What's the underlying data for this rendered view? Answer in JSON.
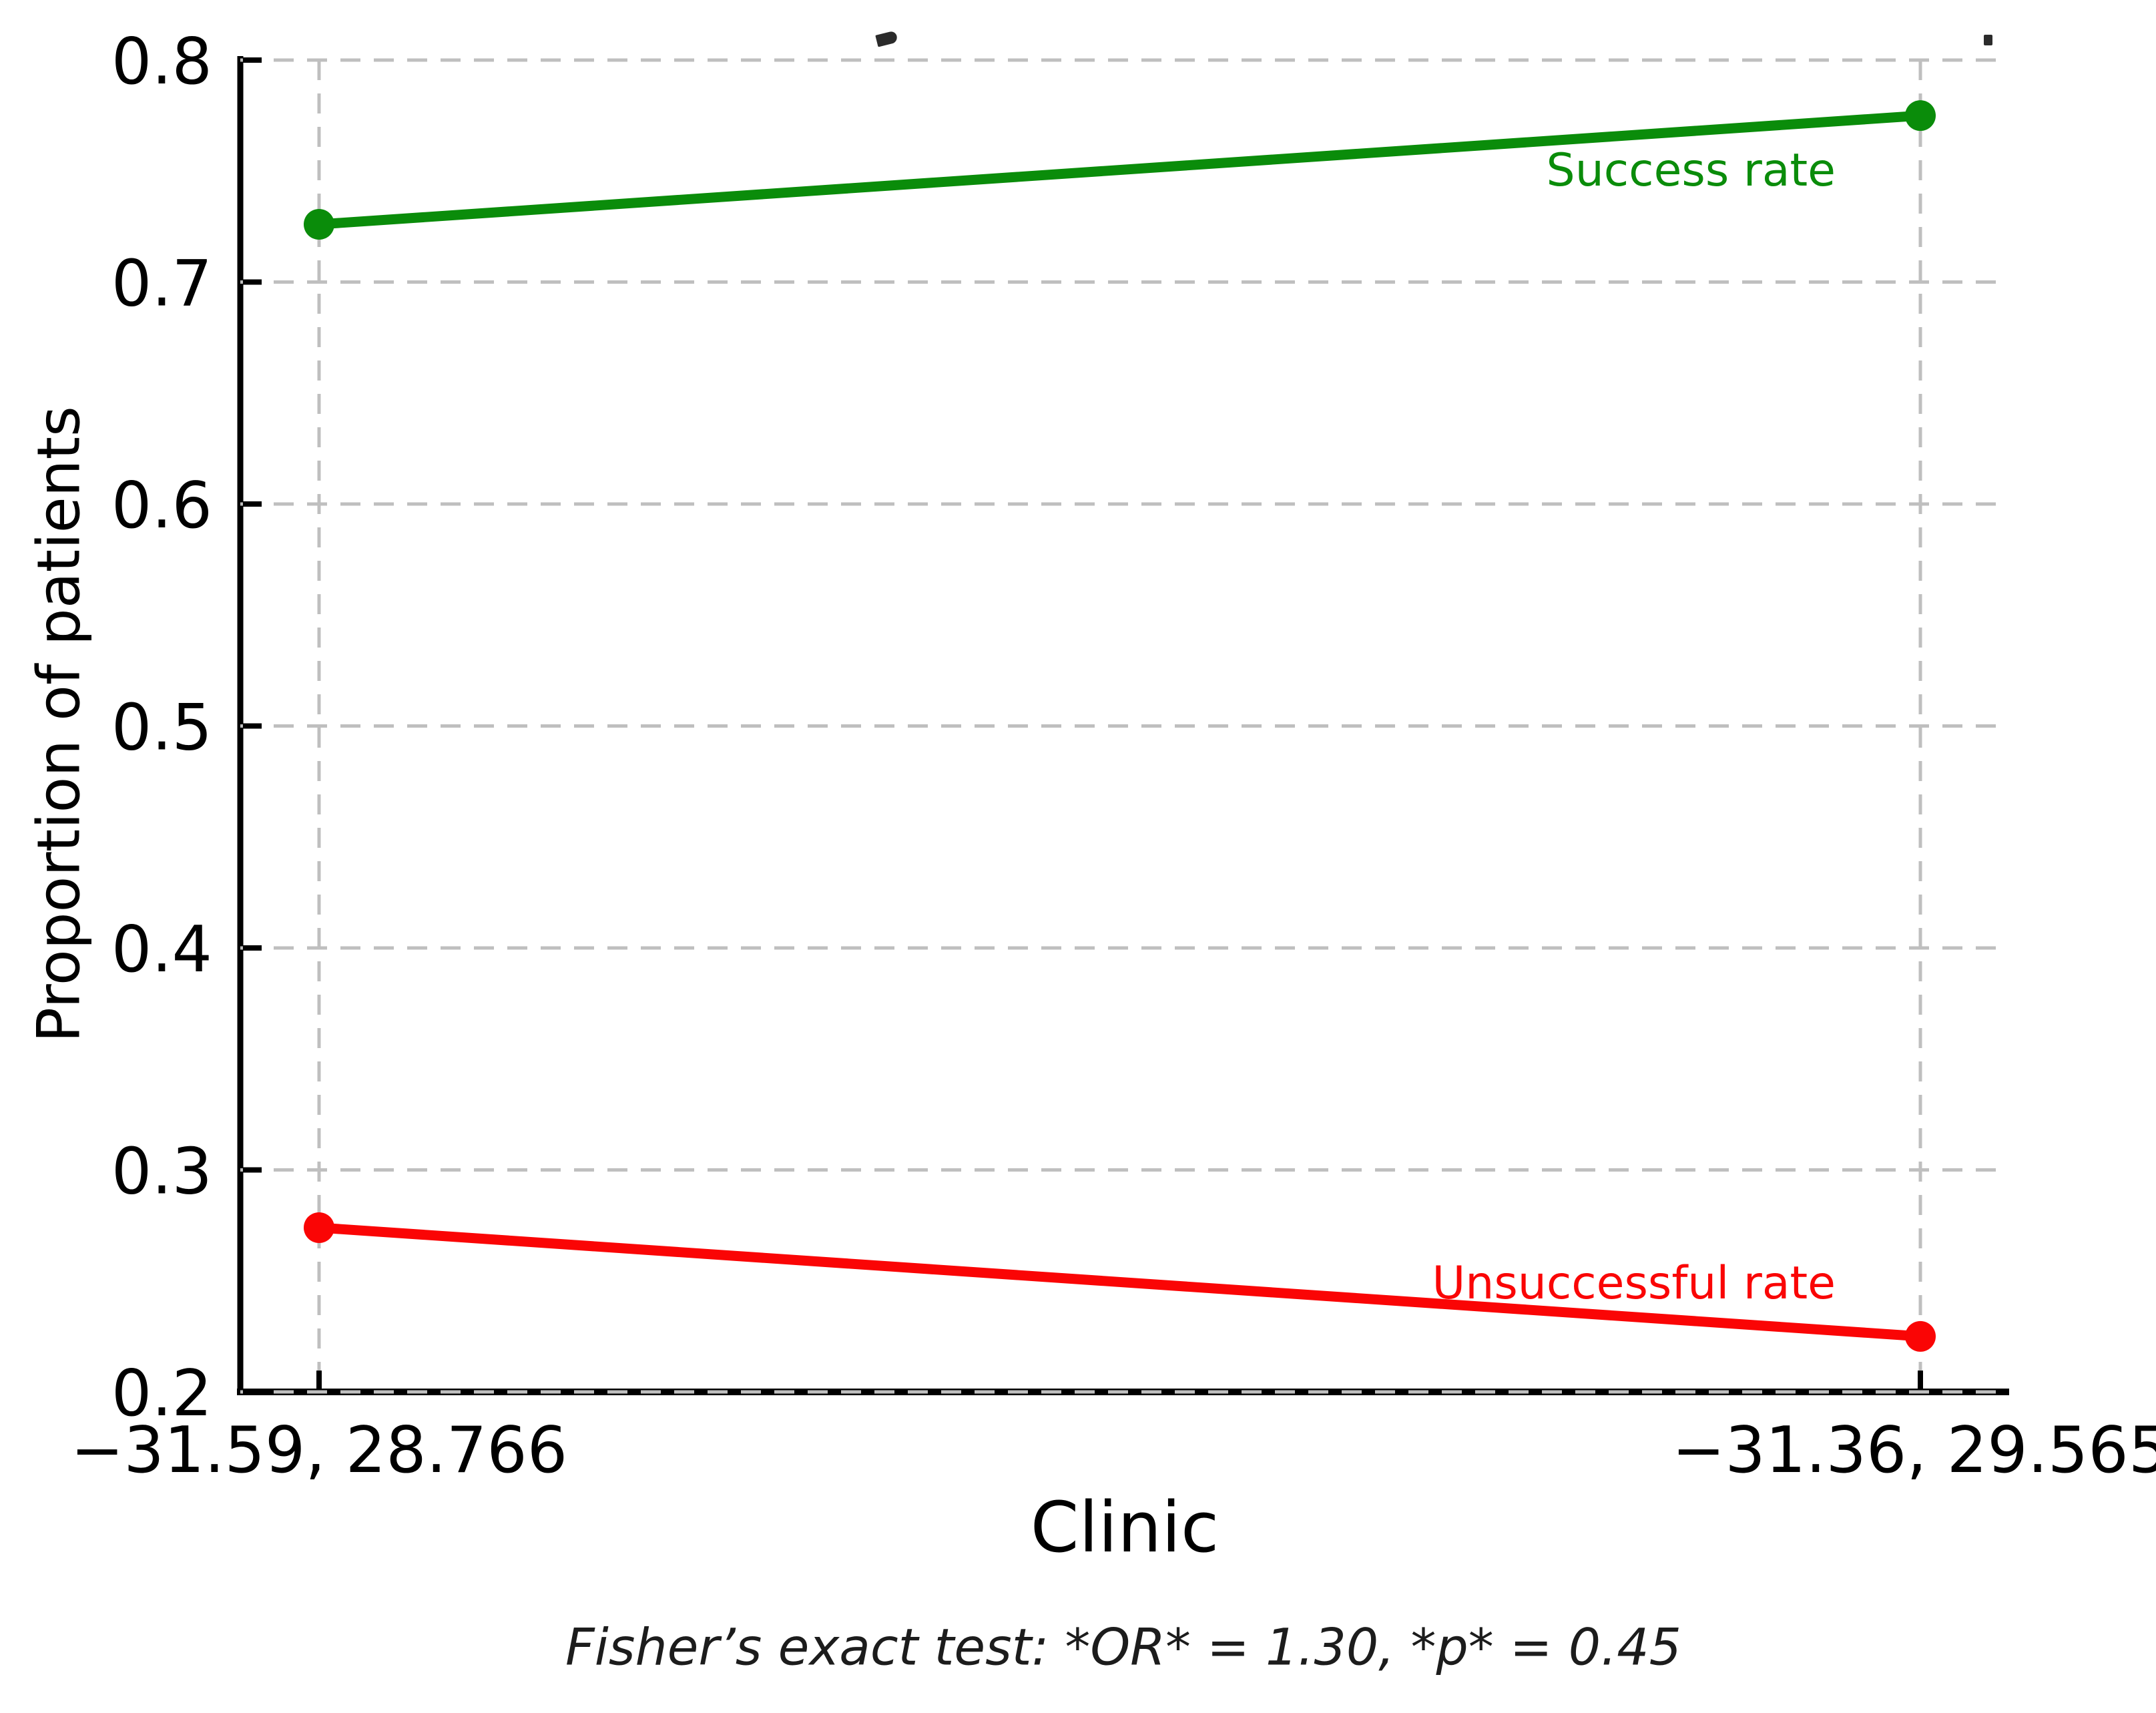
{
  "figure": {
    "background": "#ffffff",
    "clipped_title_fragments": [
      {
        "name": "title-descender-comma-fragment"
      },
      {
        "name": "title-descender-bar-fragment"
      }
    ]
  },
  "chart_data": {
    "type": "line",
    "xlabel": "Clinic",
    "ylabel": "Proportion of patients",
    "categories": [
      "−31.59, 28.766",
      "−31.36, 29.565"
    ],
    "series": [
      {
        "name": "Success rate",
        "color": "#0a8c0a",
        "values": [
          0.726,
          0.775
        ]
      },
      {
        "name": "Unsuccessful rate",
        "color": "#fa0505",
        "values": [
          0.274,
          0.225
        ]
      }
    ],
    "ylim": [
      0.2,
      0.8
    ],
    "yticks": [
      0.8,
      0.7,
      0.6,
      0.5,
      0.4,
      0.3,
      0.2
    ],
    "grid": true,
    "grid_color": "#bfbfbf",
    "axis_color": "#000000",
    "tick_label_color": "#000000",
    "legend_position": "inline-annotations",
    "caption": "Fisher’s exact test: *OR* = 1.30, *p* = 0.45"
  }
}
